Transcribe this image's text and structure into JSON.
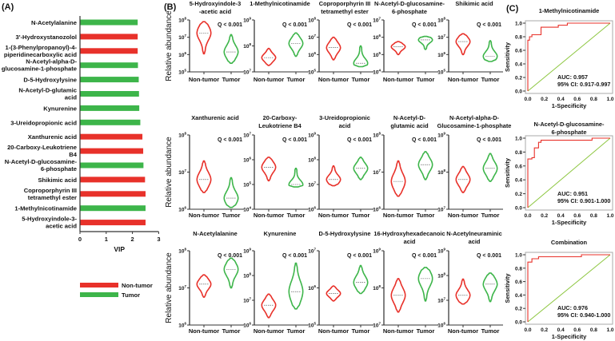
{
  "colors": {
    "nontumor": "#e8312a",
    "tumor": "#3db54a",
    "diag": "#8cc63f",
    "axis": "#808080"
  },
  "chart_data": [
    {
      "panel": "(A)",
      "type": "bar",
      "orientation": "horizontal",
      "xlabel": "VIP",
      "xlim": [
        0,
        3
      ],
      "xticks": [
        "0",
        "1",
        "2",
        "3"
      ],
      "categories": [
        {
          "label": [
            "N-Acetylalanine"
          ],
          "value": 2.2,
          "group": "tumor"
        },
        {
          "label": [
            "3'-Hydroxystanozolol"
          ],
          "value": 2.2,
          "group": "nontumor"
        },
        {
          "label": [
            "1-(3-Phenylpropanoyl)-4-",
            "piperidinecarboxylic acid"
          ],
          "value": 2.2,
          "group": "nontumor"
        },
        {
          "label": [
            "N-Acetyl-alpha-D-",
            "glucosamine-1-phosphate"
          ],
          "value": 2.21,
          "group": "tumor"
        },
        {
          "label": [
            "D-5-Hydroxylysine"
          ],
          "value": 2.24,
          "group": "tumor"
        },
        {
          "label": [
            "N-Acetyl-D-glutamic",
            "acid"
          ],
          "value": 2.25,
          "group": "tumor"
        },
        {
          "label": [
            "Kynurenine"
          ],
          "value": 2.26,
          "group": "tumor"
        },
        {
          "label": [
            "3-Ureidopropionic acid"
          ],
          "value": 2.3,
          "group": "tumor"
        },
        {
          "label": [
            "Xanthurenic acid"
          ],
          "value": 2.38,
          "group": "nontumor"
        },
        {
          "label": [
            "20-Carboxy-Leukotriene",
            "B4"
          ],
          "value": 2.41,
          "group": "nontumor"
        },
        {
          "label": [
            "N-Acetyl-D-glucosamine-",
            "6-phosphate"
          ],
          "value": 2.42,
          "group": "tumor"
        },
        {
          "label": [
            "Shikimic acid"
          ],
          "value": 2.48,
          "group": "nontumor"
        },
        {
          "label": [
            "Coproporphyrin III",
            "tetramethyl ester"
          ],
          "value": 2.5,
          "group": "nontumor"
        },
        {
          "label": [
            "1-Methylnicotinamide"
          ],
          "value": 2.5,
          "group": "tumor"
        },
        {
          "label": [
            "5-Hydroxyindole-3-",
            "acetic acid"
          ],
          "value": 2.5,
          "group": "nontumor"
        }
      ],
      "legend": [
        {
          "key": "nontumor",
          "label": "Non-tumor"
        },
        {
          "key": "tumor",
          "label": "Tumor"
        }
      ]
    },
    {
      "panel": "(B)",
      "type": "violin",
      "ylabel": "Relative abundance",
      "yscale": "log10",
      "categories": [
        "Non-tumor",
        "Tumor"
      ],
      "q_label": "Q < 0.001",
      "note": "values are log10 [min, median, max]",
      "plots": [
        {
          "title": [
            "5-Hydroxyindole-3",
            "-acetic acid"
          ],
          "ylim": [
            5,
            8
          ],
          "nontumor": [
            6.05,
            7.25,
            7.9
          ],
          "tumor": [
            5.5,
            6.15,
            7.15
          ]
        },
        {
          "title": [
            "1-Methylnicotinamide"
          ],
          "ylim": [
            7,
            9
          ],
          "nontumor": [
            7.25,
            7.55,
            7.9
          ],
          "tumor": [
            7.6,
            8.1,
            8.5
          ]
        },
        {
          "title": [
            "Coproporphyrin III",
            "tetramethyl ester"
          ],
          "ylim": [
            5,
            8
          ],
          "nontumor": [
            5.7,
            6.4,
            7.0
          ],
          "tumor": [
            5.3,
            5.5,
            6.5
          ]
        },
        {
          "title": [
            "N-Acetyl-D-glucosamine-",
            "6-phosphate"
          ],
          "ylim": [
            4,
            7
          ],
          "nontumor": [
            5.0,
            5.45,
            5.75
          ],
          "tumor": [
            5.3,
            5.85,
            6.05
          ]
        },
        {
          "title": [
            "Shikimic acid"
          ],
          "ylim": [
            5,
            8
          ],
          "nontumor": [
            6.0,
            6.75,
            7.2
          ],
          "tumor": [
            5.6,
            5.9,
            6.8
          ]
        },
        {
          "title": [
            "Xanthurenic acid"
          ],
          "ylim": [
            6,
            8
          ],
          "nontumor": [
            6.45,
            6.8,
            7.3
          ],
          "tumor": [
            6.05,
            6.3,
            6.85
          ]
        },
        {
          "title": [
            "20-Carboxy-",
            "Leukotriene B4"
          ],
          "ylim": [
            4,
            7
          ],
          "nontumor": [
            5.15,
            5.7,
            6.1
          ],
          "tumor": [
            4.9,
            5.0,
            5.65
          ]
        },
        {
          "title": [
            "3-Ureidopropionic",
            "acid"
          ],
          "ylim": [
            6,
            9
          ],
          "nontumor": [
            6.95,
            7.2,
            7.75
          ],
          "tumor": [
            7.2,
            7.65,
            8.1
          ]
        },
        {
          "title": [
            "N-Acetyl-D-",
            "glutamic acid"
          ],
          "ylim": [
            6,
            8
          ],
          "nontumor": [
            6.35,
            6.75,
            7.3
          ],
          "tumor": [
            6.8,
            7.2,
            7.55
          ]
        },
        {
          "title": [
            "N-Acetyl-alpha-D-",
            "Glucosamine-1-phosphate"
          ],
          "ylim": [
            7,
            9
          ],
          "nontumor": [
            7.45,
            7.8,
            8.15
          ],
          "tumor": [
            7.75,
            8.1,
            8.5
          ]
        },
        {
          "title": [
            "N-Acetylalanine"
          ],
          "ylim": [
            6,
            8
          ],
          "nontumor": [
            6.75,
            7.1,
            7.35
          ],
          "tumor": [
            7.0,
            7.5,
            7.8
          ]
        },
        {
          "title": [
            "Kynurenine"
          ],
          "ylim": [
            6,
            9
          ],
          "nontumor": [
            6.3,
            6.8,
            7.25
          ],
          "tumor": [
            6.65,
            7.35,
            8.5
          ]
        },
        {
          "title": [
            "D-5-Hydroxylysine"
          ],
          "ylim": [
            5,
            7
          ],
          "nontumor": [
            5.65,
            5.85,
            6.05
          ],
          "tumor": [
            5.85,
            6.15,
            6.6
          ]
        },
        {
          "title": [
            "16-Hydroxyhexadecanoic",
            "acid"
          ],
          "ylim": [
            7,
            9
          ],
          "nontumor": [
            7.35,
            7.8,
            8.25
          ],
          "tumor": [
            7.65,
            8.25,
            8.55
          ]
        },
        {
          "title": [
            "N-Acetylneuraminic",
            "acid"
          ],
          "ylim": [
            6,
            9
          ],
          "nontumor": [
            6.85,
            7.2,
            7.85
          ],
          "tumor": [
            6.95,
            7.65,
            8.1
          ]
        }
      ]
    },
    {
      "panel": "(C)",
      "type": "line",
      "xlabel": "1-Specificity",
      "ylabel": "Sensitivity",
      "xlim": [
        0,
        1
      ],
      "ylim": [
        0,
        1
      ],
      "ticks": [
        "0.0",
        "0.2",
        "0.4",
        "0.6",
        "0.8",
        "1.0"
      ],
      "plots": [
        {
          "title": [
            "1-Methylnicotinamide"
          ],
          "auc": "AUC: 0.957",
          "ci": "95% CI: 0.917-0.997",
          "curve": [
            [
              0,
              0
            ],
            [
              0,
              0.75
            ],
            [
              0.02,
              0.75
            ],
            [
              0.02,
              0.8
            ],
            [
              0.05,
              0.8
            ],
            [
              0.05,
              0.83
            ],
            [
              0.16,
              0.83
            ],
            [
              0.16,
              0.94
            ],
            [
              0.37,
              0.94
            ],
            [
              0.37,
              0.97
            ],
            [
              0.48,
              0.97
            ],
            [
              0.48,
              1
            ],
            [
              1,
              1
            ]
          ]
        },
        {
          "title": [
            "N-Acetyl-D-glucosamine-",
            "6-phosphate"
          ],
          "auc": "AUC: 0.951",
          "ci": "95% CI: 0.901-1.000",
          "curve": [
            [
              0,
              0
            ],
            [
              0,
              0.7
            ],
            [
              0.05,
              0.7
            ],
            [
              0.05,
              0.72
            ],
            [
              0.08,
              0.72
            ],
            [
              0.08,
              0.86
            ],
            [
              0.13,
              0.86
            ],
            [
              0.13,
              0.94
            ],
            [
              0.16,
              0.94
            ],
            [
              0.16,
              0.97
            ],
            [
              0.78,
              0.97
            ],
            [
              0.78,
              1
            ],
            [
              1,
              1
            ]
          ]
        },
        {
          "title": [
            "Combination"
          ],
          "auc": "AUC: 0.976",
          "ci": "95% CI: 0.940-1.000",
          "curve": [
            [
              0,
              0
            ],
            [
              0,
              0.89
            ],
            [
              0.05,
              0.89
            ],
            [
              0.05,
              0.94
            ],
            [
              0.13,
              0.94
            ],
            [
              0.13,
              0.97
            ],
            [
              0.65,
              0.97
            ],
            [
              0.65,
              1
            ],
            [
              1,
              1
            ]
          ]
        }
      ]
    }
  ]
}
